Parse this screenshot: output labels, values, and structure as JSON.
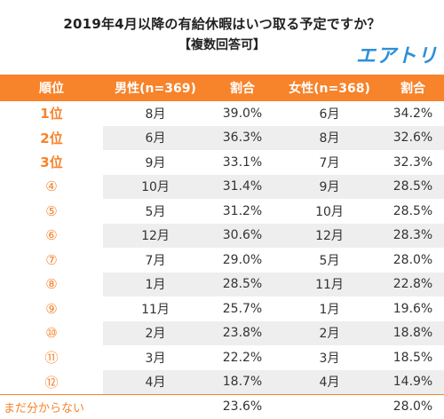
{
  "title": "2019年4月以降の有給休暇はいつ取る予定ですか？",
  "subtitle": "【複数回答可】",
  "brand": {
    "logo_text": "エアトリ",
    "color": "#2f8fd8"
  },
  "accent_color": "#f7832b",
  "headers": [
    "順位",
    "男性(n=369)",
    "割合",
    "女性(n=368)",
    "割合"
  ],
  "rows": [
    {
      "rank": "1位",
      "male_month": "8月",
      "male_pct": "39.0%",
      "female_month": "6月",
      "female_pct": "34.2%"
    },
    {
      "rank": "2位",
      "male_month": "6月",
      "male_pct": "36.3%",
      "female_month": "8月",
      "female_pct": "32.6%"
    },
    {
      "rank": "3位",
      "male_month": "9月",
      "male_pct": "33.1%",
      "female_month": "7月",
      "female_pct": "32.3%"
    },
    {
      "rank": "④",
      "male_month": "10月",
      "male_pct": "31.4%",
      "female_month": "9月",
      "female_pct": "28.5%"
    },
    {
      "rank": "⑤",
      "male_month": "5月",
      "male_pct": "31.2%",
      "female_month": "10月",
      "female_pct": "28.5%"
    },
    {
      "rank": "⑥",
      "male_month": "12月",
      "male_pct": "30.6%",
      "female_month": "12月",
      "female_pct": "28.3%"
    },
    {
      "rank": "⑦",
      "male_month": "7月",
      "male_pct": "29.0%",
      "female_month": "5月",
      "female_pct": "28.0%"
    },
    {
      "rank": "⑧",
      "male_month": "1月",
      "male_pct": "28.5%",
      "female_month": "11月",
      "female_pct": "22.8%"
    },
    {
      "rank": "⑨",
      "male_month": "11月",
      "male_pct": "25.7%",
      "female_month": "1月",
      "female_pct": "19.6%"
    },
    {
      "rank": "⑩",
      "male_month": "2月",
      "male_pct": "23.8%",
      "female_month": "2月",
      "female_pct": "18.8%"
    },
    {
      "rank": "⑪",
      "male_month": "3月",
      "male_pct": "22.2%",
      "female_month": "3月",
      "female_pct": "18.5%"
    },
    {
      "rank": "⑫",
      "male_month": "4月",
      "male_pct": "18.7%",
      "female_month": "4月",
      "female_pct": "14.9%"
    },
    {
      "rank": "まだ分からない",
      "male_month": "",
      "male_pct": "23.6%",
      "female_month": "",
      "female_pct": "28.0%"
    }
  ]
}
